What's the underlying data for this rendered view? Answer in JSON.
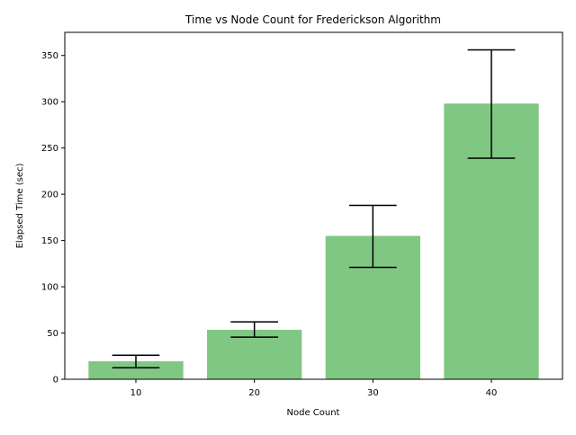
{
  "chart_data": {
    "type": "bar",
    "title": "Time vs Node Count for Frederickson Algorithm",
    "xlabel": "Node Count",
    "ylabel": "Elapsed Time (sec)",
    "categories": [
      "10",
      "20",
      "30",
      "40"
    ],
    "values": [
      19.5,
      53.5,
      155,
      298
    ],
    "error_low": [
      12.5,
      45.5,
      121,
      239
    ],
    "error_high": [
      26,
      62,
      188,
      356
    ],
    "ylim": [
      0,
      375
    ],
    "yticks": [
      0,
      50,
      100,
      150,
      200,
      250,
      300,
      350
    ],
    "bar_color": "#4caf50",
    "bar_alpha": 0.7,
    "error_color": "#000000",
    "grid": false,
    "legend": false
  }
}
